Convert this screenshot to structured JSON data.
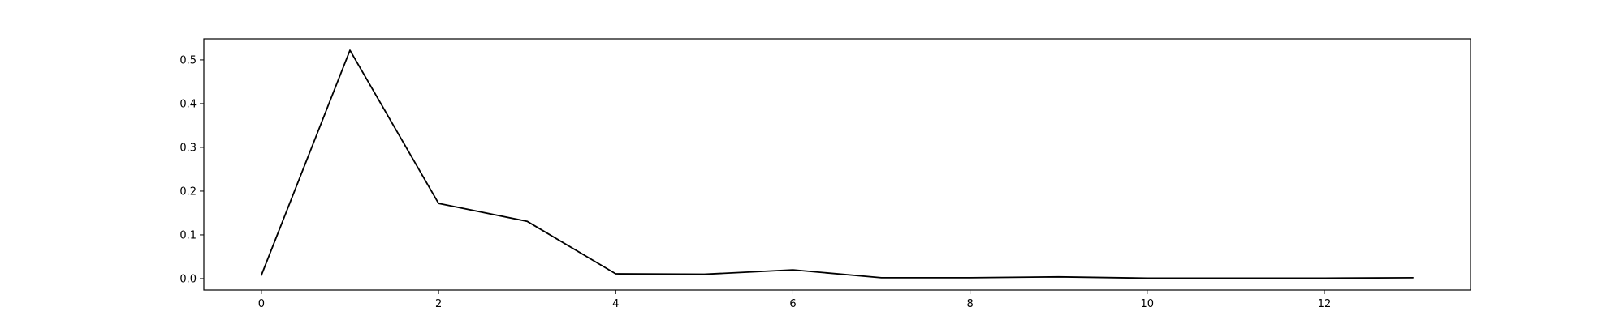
{
  "chart_data": {
    "type": "line",
    "title": "",
    "xlabel": "",
    "ylabel": "",
    "x": [
      0,
      1,
      2,
      3,
      4,
      5,
      6,
      7,
      8,
      9,
      10,
      11,
      12,
      13
    ],
    "series": [
      {
        "values": [
          0.008,
          0.522,
          0.172,
          0.131,
          0.011,
          0.01,
          0.02,
          0.002,
          0.002,
          0.004,
          0.001,
          0.001,
          0.001,
          0.002
        ]
      }
    ],
    "xlim": [
      -0.65,
      13.65
    ],
    "ylim": [
      -0.026,
      0.548
    ],
    "x_ticks": [
      0,
      2,
      4,
      6,
      8,
      10,
      12
    ],
    "x_tick_labels": [
      "0",
      "2",
      "4",
      "6",
      "8",
      "10",
      "12"
    ],
    "y_ticks": [
      0.0,
      0.1,
      0.2,
      0.3,
      0.4,
      0.5
    ],
    "y_tick_labels": [
      "0.0",
      "0.1",
      "0.2",
      "0.3",
      "0.4",
      "0.5"
    ],
    "grid": false,
    "legend": "none",
    "colors": {
      "line": "#000000",
      "axes": "#000000",
      "background": "#ffffff"
    }
  }
}
